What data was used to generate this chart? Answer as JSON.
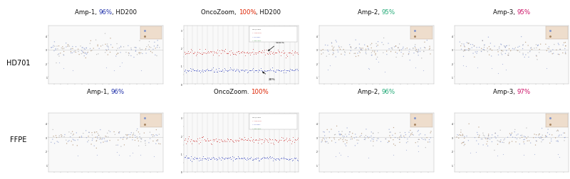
{
  "titles_row1": [
    [
      "Amp-1, ",
      "96%",
      ", HD200"
    ],
    [
      "OncoZoom, ",
      "100%",
      ", HD200"
    ],
    [
      "Amp-2, ",
      "95%",
      ""
    ],
    [
      "Amp-3, ",
      "95%",
      ""
    ]
  ],
  "titles_row2": [
    [
      "Amp-1, ",
      "96%",
      ""
    ],
    [
      "OncoZoom. ",
      "100%",
      ""
    ],
    [
      "Amp-2, ",
      "96%",
      ""
    ],
    [
      "Amp-3, ",
      "97%",
      ""
    ]
  ],
  "pct_colors": [
    "#2233aa",
    "#dd2200",
    "#22aa77",
    "#cc1166"
  ],
  "row_labels": [
    "HD701",
    "FFPE"
  ],
  "background": "#ffffff",
  "plot_bg": "#f9f9f9",
  "scatter_blue": "#8899cc",
  "scatter_brown": "#aa8866",
  "scatter_gray": "#aaaaaa",
  "line_red": "#cc4444",
  "line_blue": "#4455bb",
  "annot_500": "500%",
  "annot_20": "20%",
  "seed": 42
}
